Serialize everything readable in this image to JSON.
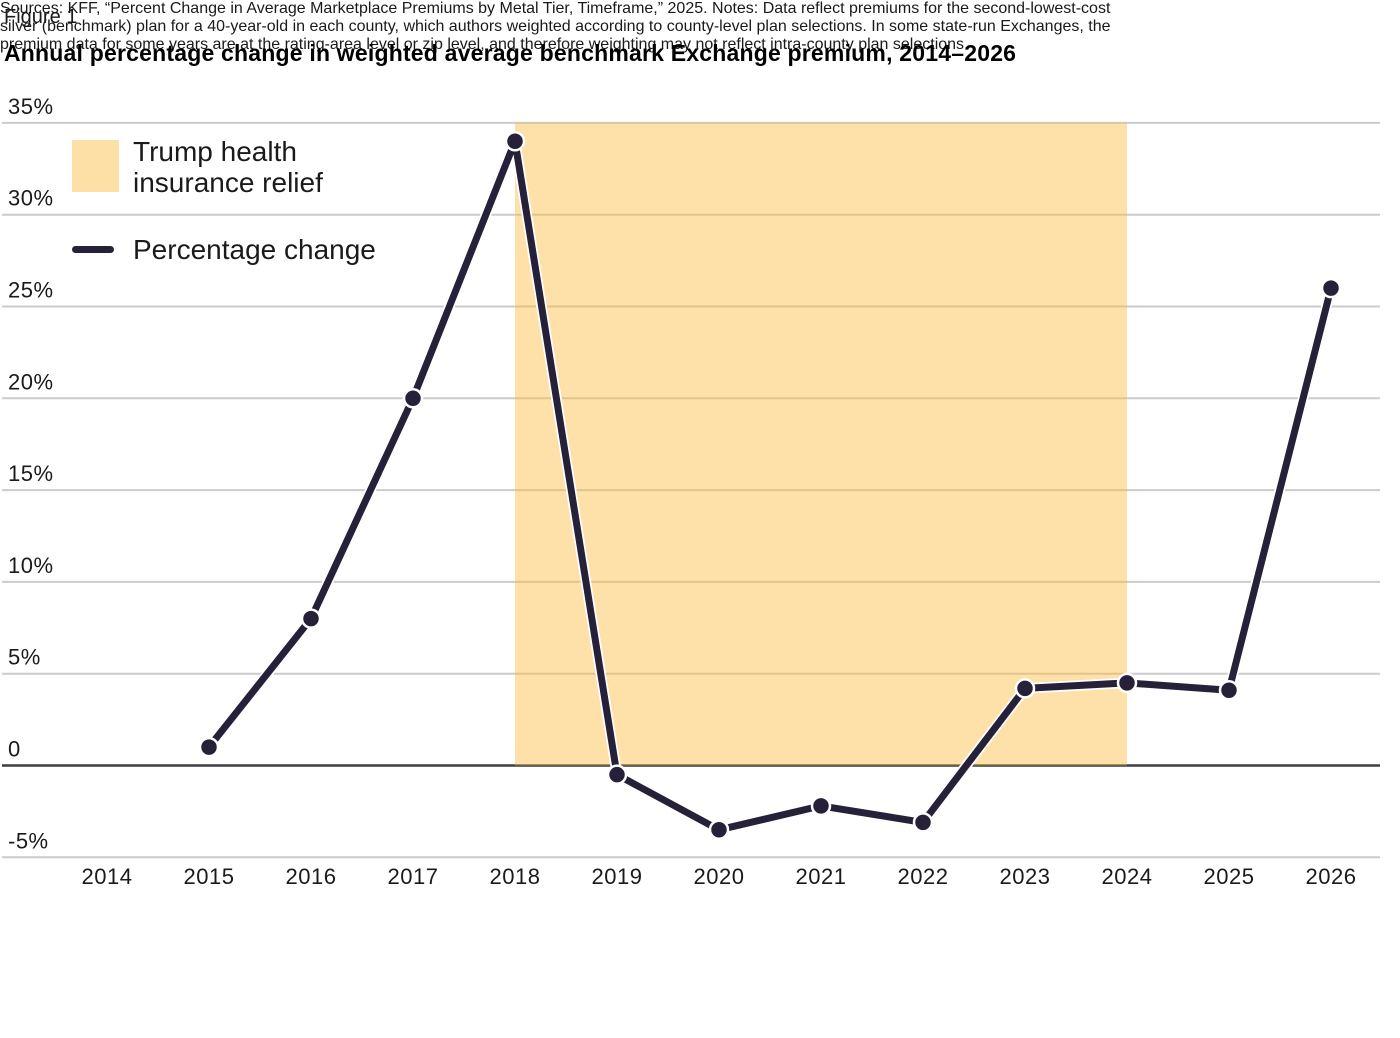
{
  "figure_label": "Figure 1",
  "title": "Annual percentage change in weighted average benchmark Exchange premium, 2014–2026",
  "legend": {
    "band_label_line1": "Trump health",
    "band_label_line2": "insurance relief",
    "band_label": "Trump health insurance relief",
    "line_label": "Percentage change"
  },
  "footer": {
    "lines": [
      "Sources: KFF, “Percent Change in Average Marketplace Premiums by Metal Tier, Timeframe,” 2025. Notes: Data reflect premiums for the second-lowest-cost",
      "silver (benchmark) plan for a 40-year-old in each county, which authors weighted according to county-level plan selections. In some state-run Exchanges, the",
      "premium data for some years are at the rating-area level or zip level, and therefore weighting may not reflect intra-county plan selections."
    ]
  },
  "colors": {
    "line": "#262139",
    "band_fill": "rgba(251,189,62,0.45)",
    "band_swatch": "#FCE0A5",
    "gridline": "#CBCBCB",
    "zero_line": "#3D3D44",
    "text": "#1A1A1A",
    "marker_halo": "#FFFFFF"
  },
  "chart_data": {
    "type": "line",
    "title": "Annual percentage change in weighted average benchmark Exchange premium, 2014–2026",
    "x": [
      2014,
      2015,
      2016,
      2017,
      2018,
      2019,
      2020,
      2021,
      2022,
      2023,
      2024,
      2025,
      2026
    ],
    "series": [
      {
        "name": "Percentage change",
        "values": [
          null,
          1,
          8,
          20,
          34,
          -0.5,
          -3.5,
          -2.2,
          -3.1,
          4.2,
          4.5,
          4.1,
          26
        ]
      }
    ],
    "shaded_region": {
      "label": "Trump health insurance relief",
      "x_start": 2018,
      "x_end": 2024,
      "y_top": 35,
      "y_bottom": 0
    },
    "ylim": [
      -5,
      35
    ],
    "yticks": [
      {
        "value": 35,
        "label": "35%"
      },
      {
        "value": 30,
        "label": "30%"
      },
      {
        "value": 25,
        "label": "25%"
      },
      {
        "value": 20,
        "label": "20%"
      },
      {
        "value": 15,
        "label": "15%"
      },
      {
        "value": 10,
        "label": "10%"
      },
      {
        "value": 5,
        "label": "5%"
      },
      {
        "value": 0,
        "label": "0"
      },
      {
        "value": -5,
        "label": "-5%"
      }
    ],
    "grid": true,
    "legend_position": "top-left"
  }
}
